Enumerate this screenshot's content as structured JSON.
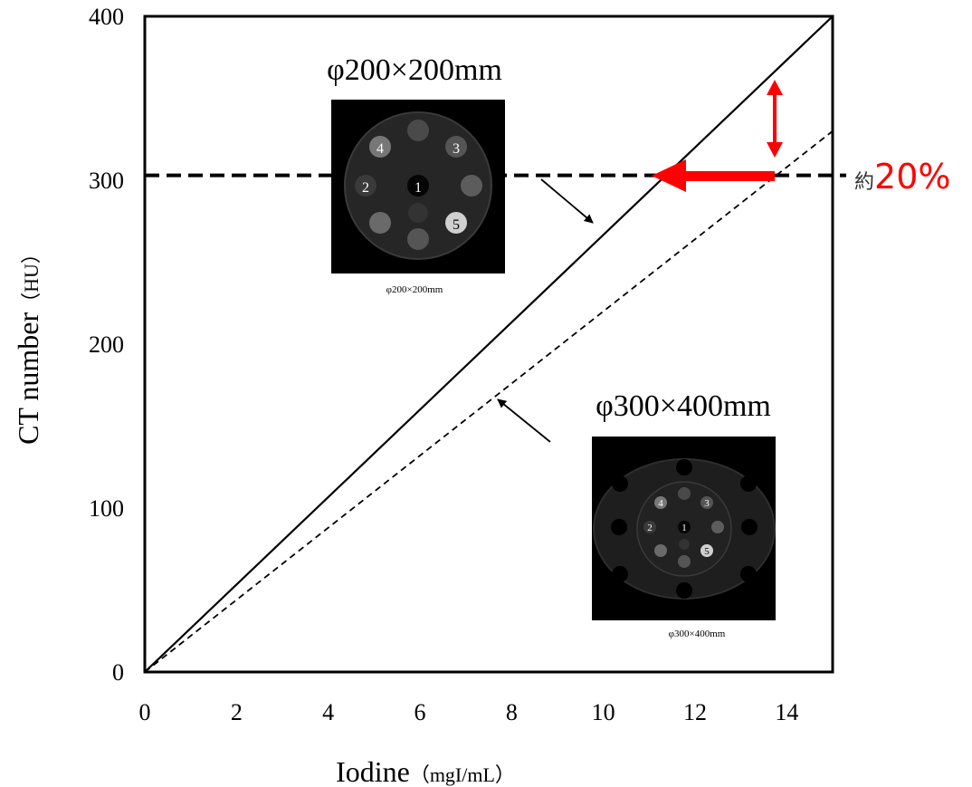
{
  "chart_data": {
    "type": "line",
    "title": "",
    "xlabel": "Iodine",
    "xlabel_unit": "（mgI/mL）",
    "ylabel": "CT number",
    "ylabel_unit": "（HU）",
    "xlim": [
      0,
      15
    ],
    "ylim": [
      0,
      400
    ],
    "xticks": [
      "0",
      "2",
      "4",
      "6",
      "8",
      "10",
      "12",
      "14"
    ],
    "yticks": [
      "0",
      "100",
      "200",
      "300",
      "400"
    ],
    "grid": false,
    "reference_line": {
      "y": 303,
      "style": "dashed"
    },
    "series": [
      {
        "name": "φ200×200mm",
        "style": "solid",
        "x": [
          0,
          15
        ],
        "y": [
          0,
          400
        ]
      },
      {
        "name": "φ300×400mm",
        "style": "dashed",
        "x": [
          0,
          15
        ],
        "y": [
          0,
          330
        ]
      }
    ],
    "annotations": {
      "difference_prefix": "約",
      "difference_value": "20%",
      "phantom_small": {
        "title": "φ200×200mm",
        "caption": "φ200×200mm",
        "rods": [
          "1",
          "2",
          "3",
          "4",
          "5"
        ]
      },
      "phantom_large": {
        "title": "φ300×400mm",
        "caption": "φ300×400mm",
        "rods": [
          "1",
          "2",
          "3",
          "4",
          "5"
        ]
      }
    },
    "colors": {
      "arrow": "#ff0000",
      "line": "#000000",
      "phantom_bg": "#000000"
    }
  }
}
